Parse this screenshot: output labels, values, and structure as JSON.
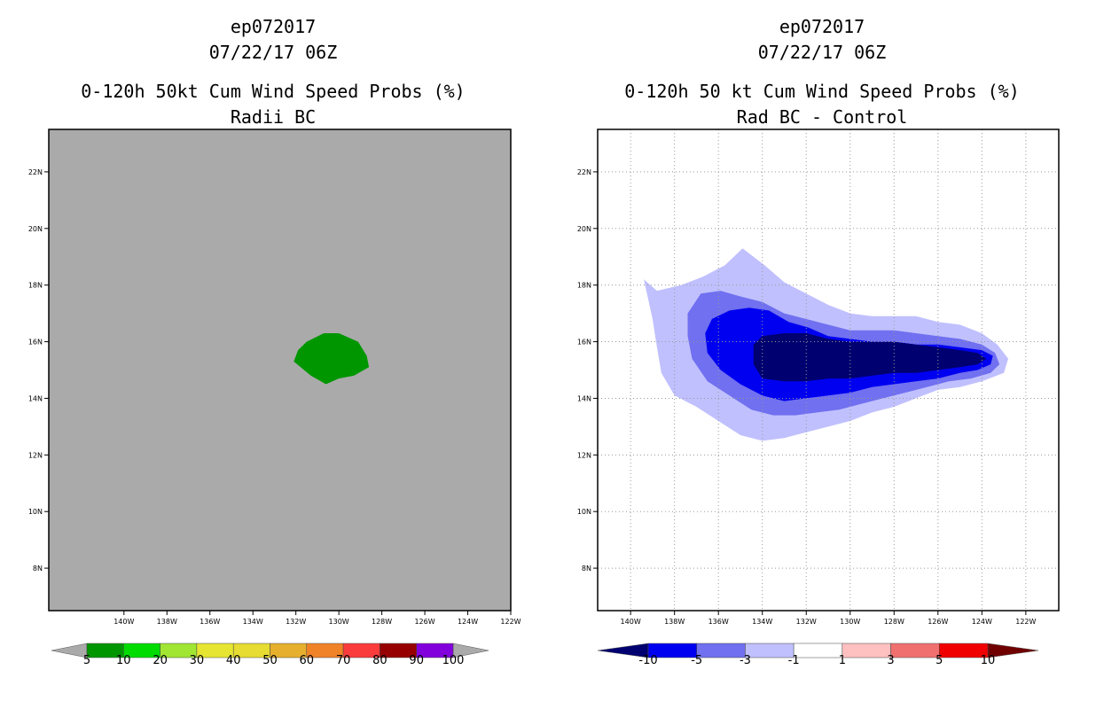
{
  "chart_data": [
    {
      "type": "filled-contour map",
      "title": [
        "ep072017",
        "07/22/17 06Z",
        "0-120h 50kt Cum Wind Speed Probs (%)",
        "Radii BC"
      ],
      "xlim": [
        -143.5,
        -122
      ],
      "ylim": [
        6.5,
        23.5
      ],
      "xticks": [
        -140,
        -138,
        -136,
        -134,
        -132,
        -130,
        -128,
        -126,
        -124,
        -122
      ],
      "xtick_labels": [
        "140W",
        "138W",
        "136W",
        "134W",
        "132W",
        "130W",
        "128W",
        "126W",
        "124W",
        "122W"
      ],
      "yticks": [
        8,
        10,
        12,
        14,
        16,
        18,
        20,
        22
      ],
      "ytick_labels": [
        "8N",
        "10N",
        "12N",
        "14N",
        "16N",
        "18N",
        "20N",
        "22N"
      ],
      "grid": false,
      "background": "#aaaaaa",
      "contours": [
        {
          "level": "5-10",
          "color": "#009600",
          "polygon": [
            [
              -131.9,
              15.7
            ],
            [
              -131.5,
              16.0
            ],
            [
              -130.7,
              16.3
            ],
            [
              -130.0,
              16.3
            ],
            [
              -129.1,
              16.0
            ],
            [
              -128.7,
              15.5
            ],
            [
              -128.6,
              15.1
            ],
            [
              -129.3,
              14.8
            ],
            [
              -130.0,
              14.7
            ],
            [
              -130.6,
              14.5
            ],
            [
              -131.3,
              14.8
            ],
            [
              -132.1,
              15.3
            ]
          ]
        }
      ],
      "colorbar": {
        "levels": [
          "5",
          "10",
          "20",
          "30",
          "40",
          "50",
          "60",
          "70",
          "80",
          "90",
          "100"
        ],
        "colors": [
          "#009600",
          "#00dc00",
          "#a0e632",
          "#e6e632",
          "#e6dc32",
          "#e6af2d",
          "#f08228",
          "#fa3c3c",
          "#960000",
          "#8200dc"
        ],
        "end_colors": [
          "#aaaaaa",
          "#aaaaaa"
        ]
      }
    },
    {
      "type": "filled-contour map",
      "title": [
        "ep072017",
        "07/22/17 06Z",
        "0-120h 50 kt Cum Wind Speed Probs (%)",
        "Rad BC - Control"
      ],
      "xlim": [
        -141.5,
        -120.5
      ],
      "ylim": [
        6.5,
        23.5
      ],
      "xticks": [
        -140,
        -138,
        -136,
        -134,
        -132,
        -130,
        -128,
        -126,
        -124,
        -122
      ],
      "xtick_labels": [
        "140W",
        "138W",
        "136W",
        "134W",
        "132W",
        "130W",
        "128W",
        "126W",
        "124W",
        "122W"
      ],
      "yticks": [
        8,
        10,
        12,
        14,
        16,
        18,
        20,
        22
      ],
      "ytick_labels": [
        "8N",
        "10N",
        "12N",
        "14N",
        "16N",
        "18N",
        "20N",
        "22N"
      ],
      "grid": true,
      "background": "#ffffff",
      "contours": [
        {
          "level": "-3 to -1",
          "color": "#c0c0ff",
          "polygon": [
            [
              -139.4,
              18.2
            ],
            [
              -138.8,
              17.8
            ],
            [
              -137.7,
              18.0
            ],
            [
              -136.7,
              18.3
            ],
            [
              -135.7,
              18.7
            ],
            [
              -134.9,
              19.3
            ],
            [
              -133.9,
              18.7
            ],
            [
              -133.0,
              18.1
            ],
            [
              -132.0,
              17.7
            ],
            [
              -131.0,
              17.3
            ],
            [
              -130.0,
              17.0
            ],
            [
              -129.0,
              16.9
            ],
            [
              -128.0,
              16.9
            ],
            [
              -127.0,
              16.9
            ],
            [
              -126.0,
              16.7
            ],
            [
              -125.0,
              16.6
            ],
            [
              -124.0,
              16.3
            ],
            [
              -123.3,
              15.9
            ],
            [
              -122.8,
              15.4
            ],
            [
              -123.0,
              14.9
            ],
            [
              -124.0,
              14.6
            ],
            [
              -125.0,
              14.4
            ],
            [
              -126.0,
              14.3
            ],
            [
              -127.0,
              14.0
            ],
            [
              -128.0,
              13.7
            ],
            [
              -129.0,
              13.5
            ],
            [
              -130.0,
              13.2
            ],
            [
              -131.0,
              13.0
            ],
            [
              -132.0,
              12.8
            ],
            [
              -133.0,
              12.6
            ],
            [
              -134.0,
              12.5
            ],
            [
              -135.0,
              12.7
            ],
            [
              -136.0,
              13.2
            ],
            [
              -137.0,
              13.7
            ],
            [
              -138.0,
              14.1
            ],
            [
              -138.6,
              14.9
            ],
            [
              -138.8,
              15.8
            ],
            [
              -139.0,
              16.8
            ],
            [
              -139.2,
              17.5
            ]
          ]
        },
        {
          "level": "-5 to -3",
          "color": "#7070f0",
          "polygon": [
            [
              -137.4,
              17.0
            ],
            [
              -136.8,
              17.7
            ],
            [
              -135.9,
              17.8
            ],
            [
              -135.0,
              17.6
            ],
            [
              -134.0,
              17.4
            ],
            [
              -133.0,
              17.0
            ],
            [
              -132.0,
              16.8
            ],
            [
              -131.0,
              16.6
            ],
            [
              -130.0,
              16.4
            ],
            [
              -129.0,
              16.4
            ],
            [
              -128.0,
              16.4
            ],
            [
              -127.0,
              16.3
            ],
            [
              -126.0,
              16.2
            ],
            [
              -125.0,
              16.1
            ],
            [
              -124.0,
              15.9
            ],
            [
              -123.4,
              15.6
            ],
            [
              -123.2,
              15.2
            ],
            [
              -123.6,
              14.9
            ],
            [
              -124.5,
              14.7
            ],
            [
              -125.5,
              14.6
            ],
            [
              -126.5,
              14.4
            ],
            [
              -127.5,
              14.2
            ],
            [
              -128.5,
              14.0
            ],
            [
              -129.5,
              13.8
            ],
            [
              -130.5,
              13.6
            ],
            [
              -131.5,
              13.5
            ],
            [
              -132.5,
              13.4
            ],
            [
              -133.5,
              13.4
            ],
            [
              -134.5,
              13.6
            ],
            [
              -135.5,
              14.1
            ],
            [
              -136.5,
              14.6
            ],
            [
              -137.2,
              15.4
            ],
            [
              -137.4,
              16.2
            ]
          ]
        },
        {
          "level": "-10 to -5",
          "color": "#0000f0",
          "polygon": [
            [
              -136.6,
              16.3
            ],
            [
              -136.3,
              16.8
            ],
            [
              -135.5,
              17.1
            ],
            [
              -134.6,
              17.2
            ],
            [
              -133.7,
              17.1
            ],
            [
              -132.8,
              16.7
            ],
            [
              -131.9,
              16.5
            ],
            [
              -131.0,
              16.2
            ],
            [
              -130.0,
              16.1
            ],
            [
              -129.0,
              16.0
            ],
            [
              -128.0,
              16.0
            ],
            [
              -127.0,
              15.9
            ],
            [
              -126.0,
              15.9
            ],
            [
              -125.0,
              15.8
            ],
            [
              -124.0,
              15.7
            ],
            [
              -123.5,
              15.5
            ],
            [
              -123.6,
              15.2
            ],
            [
              -124.2,
              15.0
            ],
            [
              -125.0,
              14.9
            ],
            [
              -126.0,
              14.7
            ],
            [
              -127.0,
              14.6
            ],
            [
              -128.0,
              14.5
            ],
            [
              -129.0,
              14.4
            ],
            [
              -130.0,
              14.2
            ],
            [
              -131.0,
              14.1
            ],
            [
              -132.0,
              14.0
            ],
            [
              -133.0,
              13.9
            ],
            [
              -134.0,
              14.1
            ],
            [
              -135.0,
              14.5
            ],
            [
              -135.9,
              15.0
            ],
            [
              -136.5,
              15.6
            ]
          ]
        },
        {
          "level": "< -10",
          "color": "#000070",
          "polygon": [
            [
              -134.4,
              15.9
            ],
            [
              -134.0,
              16.2
            ],
            [
              -133.0,
              16.3
            ],
            [
              -132.0,
              16.3
            ],
            [
              -131.0,
              16.1
            ],
            [
              -130.0,
              16.0
            ],
            [
              -129.0,
              16.0
            ],
            [
              -128.0,
              16.0
            ],
            [
              -127.0,
              15.9
            ],
            [
              -126.0,
              15.8
            ],
            [
              -125.0,
              15.7
            ],
            [
              -124.2,
              15.6
            ],
            [
              -123.8,
              15.4
            ],
            [
              -124.2,
              15.2
            ],
            [
              -125.0,
              15.1
            ],
            [
              -126.0,
              15.0
            ],
            [
              -127.0,
              14.9
            ],
            [
              -128.0,
              14.9
            ],
            [
              -129.0,
              14.8
            ],
            [
              -130.0,
              14.7
            ],
            [
              -131.0,
              14.7
            ],
            [
              -132.0,
              14.6
            ],
            [
              -133.0,
              14.6
            ],
            [
              -134.0,
              14.7
            ],
            [
              -134.4,
              15.2
            ]
          ]
        }
      ],
      "colorbar": {
        "levels": [
          "-10",
          "-5",
          "-3",
          "-1",
          "1",
          "3",
          "5",
          "10"
        ],
        "colors": [
          "#0000f0",
          "#7070f0",
          "#c0c0ff",
          "#ffffff",
          "#ffc0c0",
          "#f07070",
          "#f00000"
        ],
        "end_colors": [
          "#000070",
          "#700000"
        ]
      }
    }
  ]
}
